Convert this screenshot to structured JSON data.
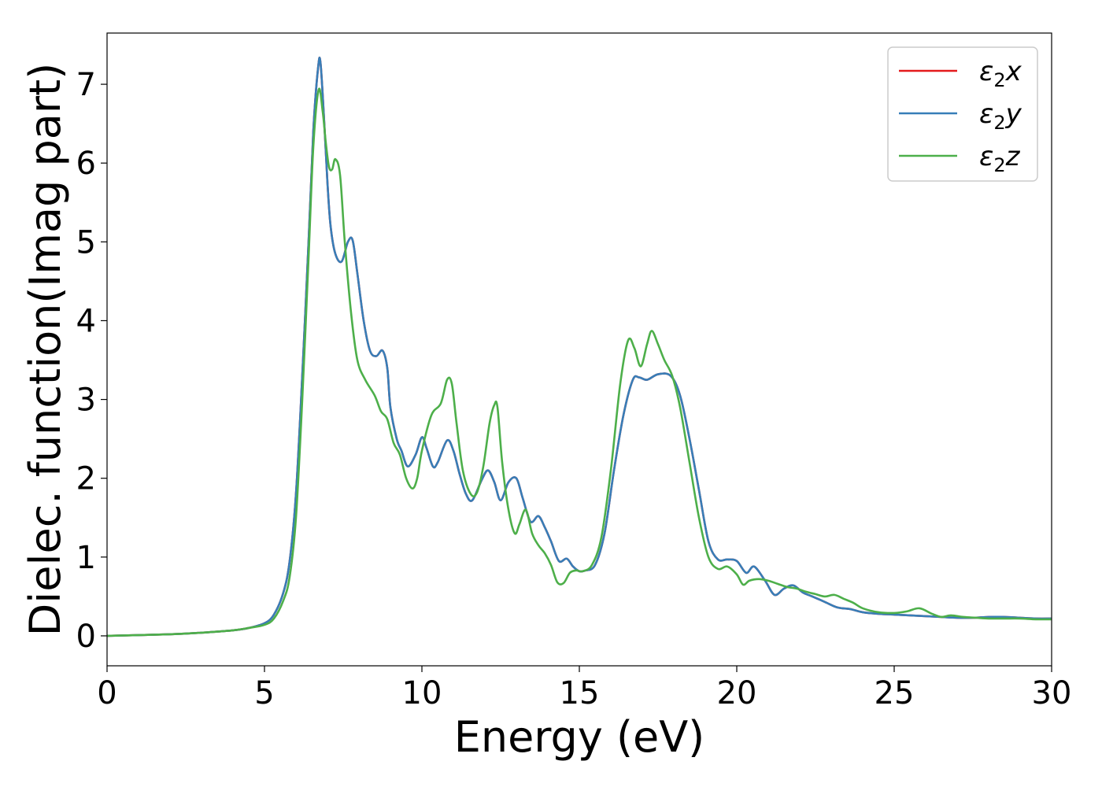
{
  "chart_data": {
    "type": "line",
    "xlabel": "Energy (eV)",
    "ylabel": "Dielec. function(Imag part)",
    "xlim": [
      0,
      30
    ],
    "ylim": [
      -0.38,
      7.65
    ],
    "xticks": [
      0,
      5,
      10,
      15,
      20,
      25,
      30
    ],
    "yticks": [
      0,
      1,
      2,
      3,
      4,
      5,
      6,
      7
    ],
    "grid": false,
    "legend_position": "top-right",
    "series": [
      {
        "name": "ε₂x",
        "legend": {
          "base": "ε",
          "sub": "2",
          "var": "x"
        },
        "color": "#e41a1c",
        "x": [
          0,
          2,
          3,
          4,
          4.5,
          5,
          5.3,
          5.6,
          5.8,
          6.0,
          6.2,
          6.4,
          6.55,
          6.7,
          6.78,
          6.9,
          7.0,
          7.1,
          7.25,
          7.45,
          7.65,
          7.8,
          7.95,
          8.15,
          8.35,
          8.55,
          8.75,
          8.9,
          9.0,
          9.2,
          9.35,
          9.55,
          9.8,
          10.0,
          10.15,
          10.35,
          10.5,
          10.8,
          11.0,
          11.2,
          11.4,
          11.6,
          11.9,
          12.1,
          12.3,
          12.5,
          12.75,
          13.0,
          13.2,
          13.45,
          13.7,
          13.9,
          14.1,
          14.35,
          14.6,
          14.8,
          15.0,
          15.2,
          15.5,
          15.8,
          16.1,
          16.4,
          16.7,
          16.9,
          17.15,
          17.5,
          17.9,
          18.2,
          18.5,
          18.8,
          19.1,
          19.4,
          19.7,
          20.0,
          20.3,
          20.55,
          20.9,
          21.2,
          21.5,
          21.8,
          22.1,
          22.4,
          22.8,
          23.2,
          23.6,
          24.0,
          24.5,
          25.0,
          25.5,
          26.0,
          26.5,
          27.0,
          27.5,
          28.0,
          28.5,
          29.0,
          29.5,
          30.0
        ],
        "y": [
          0.0,
          0.02,
          0.04,
          0.07,
          0.1,
          0.16,
          0.27,
          0.55,
          0.95,
          1.8,
          3.3,
          5.0,
          6.4,
          7.2,
          7.27,
          6.5,
          5.75,
          5.2,
          4.85,
          4.75,
          5.0,
          5.02,
          4.6,
          4.0,
          3.62,
          3.55,
          3.62,
          3.4,
          2.9,
          2.5,
          2.35,
          2.15,
          2.3,
          2.52,
          2.38,
          2.15,
          2.2,
          2.48,
          2.35,
          2.05,
          1.8,
          1.72,
          1.98,
          2.1,
          1.95,
          1.72,
          1.95,
          2.0,
          1.75,
          1.45,
          1.52,
          1.38,
          1.2,
          0.95,
          0.98,
          0.88,
          0.82,
          0.83,
          0.9,
          1.3,
          2.1,
          2.8,
          3.25,
          3.28,
          3.25,
          3.32,
          3.3,
          3.05,
          2.5,
          1.85,
          1.2,
          0.97,
          0.97,
          0.95,
          0.8,
          0.88,
          0.7,
          0.52,
          0.6,
          0.64,
          0.55,
          0.5,
          0.43,
          0.36,
          0.34,
          0.3,
          0.28,
          0.27,
          0.26,
          0.25,
          0.24,
          0.23,
          0.23,
          0.24,
          0.24,
          0.23,
          0.22,
          0.22
        ]
      },
      {
        "name": "ε₂y",
        "legend": {
          "base": "ε",
          "sub": "2",
          "var": "y"
        },
        "color": "#377eb8",
        "x": [
          0,
          2,
          3,
          4,
          4.5,
          5,
          5.3,
          5.6,
          5.8,
          6.0,
          6.2,
          6.4,
          6.55,
          6.7,
          6.78,
          6.9,
          7.0,
          7.1,
          7.25,
          7.45,
          7.65,
          7.8,
          7.95,
          8.15,
          8.35,
          8.55,
          8.75,
          8.9,
          9.0,
          9.2,
          9.35,
          9.55,
          9.8,
          10.0,
          10.15,
          10.35,
          10.5,
          10.8,
          11.0,
          11.2,
          11.4,
          11.6,
          11.9,
          12.1,
          12.3,
          12.5,
          12.75,
          13.0,
          13.2,
          13.45,
          13.7,
          13.9,
          14.1,
          14.35,
          14.6,
          14.8,
          15.0,
          15.2,
          15.5,
          15.8,
          16.1,
          16.4,
          16.7,
          16.9,
          17.15,
          17.5,
          17.9,
          18.2,
          18.5,
          18.8,
          19.1,
          19.4,
          19.7,
          20.0,
          20.3,
          20.55,
          20.9,
          21.2,
          21.5,
          21.8,
          22.1,
          22.4,
          22.8,
          23.2,
          23.6,
          24.0,
          24.5,
          25.0,
          25.5,
          26.0,
          26.5,
          27.0,
          27.5,
          28.0,
          28.5,
          29.0,
          29.5,
          30.0
        ],
        "y": [
          0.0,
          0.02,
          0.04,
          0.07,
          0.1,
          0.16,
          0.27,
          0.55,
          0.95,
          1.8,
          3.3,
          5.0,
          6.4,
          7.2,
          7.27,
          6.5,
          5.75,
          5.2,
          4.85,
          4.75,
          5.0,
          5.02,
          4.6,
          4.0,
          3.62,
          3.55,
          3.62,
          3.4,
          2.9,
          2.5,
          2.35,
          2.15,
          2.3,
          2.52,
          2.38,
          2.15,
          2.2,
          2.48,
          2.35,
          2.05,
          1.8,
          1.72,
          1.98,
          2.1,
          1.95,
          1.72,
          1.95,
          2.0,
          1.75,
          1.45,
          1.52,
          1.38,
          1.2,
          0.95,
          0.98,
          0.88,
          0.82,
          0.83,
          0.9,
          1.3,
          2.1,
          2.8,
          3.25,
          3.28,
          3.25,
          3.32,
          3.3,
          3.05,
          2.5,
          1.85,
          1.2,
          0.97,
          0.97,
          0.95,
          0.8,
          0.88,
          0.7,
          0.52,
          0.6,
          0.64,
          0.55,
          0.5,
          0.43,
          0.36,
          0.34,
          0.3,
          0.28,
          0.27,
          0.26,
          0.25,
          0.24,
          0.23,
          0.23,
          0.24,
          0.24,
          0.23,
          0.22,
          0.22
        ]
      },
      {
        "name": "ε₂z",
        "legend": {
          "base": "ε",
          "sub": "2",
          "var": "z"
        },
        "color": "#4daf4a",
        "x": [
          0,
          2,
          3,
          4,
          4.5,
          5,
          5.3,
          5.6,
          5.8,
          6.0,
          6.2,
          6.4,
          6.55,
          6.72,
          6.85,
          6.95,
          7.05,
          7.15,
          7.25,
          7.4,
          7.55,
          7.75,
          7.95,
          8.2,
          8.5,
          8.7,
          8.9,
          9.1,
          9.3,
          9.5,
          9.7,
          9.85,
          10.0,
          10.3,
          10.6,
          10.8,
          10.95,
          11.1,
          11.3,
          11.55,
          11.75,
          11.95,
          12.15,
          12.3,
          12.4,
          12.55,
          12.75,
          12.95,
          13.1,
          13.3,
          13.5,
          13.7,
          13.9,
          14.1,
          14.3,
          14.5,
          14.7,
          14.9,
          15.1,
          15.4,
          15.7,
          16.0,
          16.3,
          16.55,
          16.75,
          16.95,
          17.15,
          17.3,
          17.5,
          17.7,
          17.95,
          18.2,
          18.5,
          18.8,
          19.1,
          19.4,
          19.7,
          20.0,
          20.2,
          20.4,
          20.7,
          21.0,
          21.3,
          21.6,
          21.9,
          22.2,
          22.5,
          22.8,
          23.1,
          23.4,
          23.7,
          24.0,
          24.5,
          25.0,
          25.4,
          25.8,
          26.2,
          26.5,
          26.8,
          27.2,
          27.6,
          28.0,
          28.5,
          29.0,
          29.5,
          30.0
        ],
        "y": [
          0.0,
          0.02,
          0.04,
          0.07,
          0.1,
          0.14,
          0.22,
          0.45,
          0.75,
          1.5,
          3.0,
          4.8,
          6.2,
          6.93,
          6.65,
          6.25,
          5.95,
          5.92,
          6.05,
          5.85,
          5.0,
          4.1,
          3.5,
          3.25,
          3.05,
          2.85,
          2.75,
          2.45,
          2.3,
          2.0,
          1.87,
          2.0,
          2.35,
          2.8,
          2.95,
          3.25,
          3.2,
          2.7,
          2.1,
          1.8,
          1.82,
          2.15,
          2.7,
          2.93,
          2.9,
          2.2,
          1.6,
          1.3,
          1.42,
          1.6,
          1.3,
          1.15,
          1.05,
          0.9,
          0.68,
          0.67,
          0.8,
          0.83,
          0.82,
          0.9,
          1.25,
          2.1,
          3.2,
          3.75,
          3.65,
          3.42,
          3.7,
          3.87,
          3.7,
          3.5,
          3.3,
          2.9,
          2.2,
          1.5,
          1.0,
          0.85,
          0.88,
          0.78,
          0.65,
          0.7,
          0.72,
          0.7,
          0.66,
          0.62,
          0.6,
          0.56,
          0.53,
          0.5,
          0.52,
          0.47,
          0.42,
          0.35,
          0.3,
          0.29,
          0.31,
          0.35,
          0.28,
          0.24,
          0.26,
          0.24,
          0.23,
          0.22,
          0.22,
          0.22,
          0.21,
          0.21
        ]
      }
    ]
  }
}
